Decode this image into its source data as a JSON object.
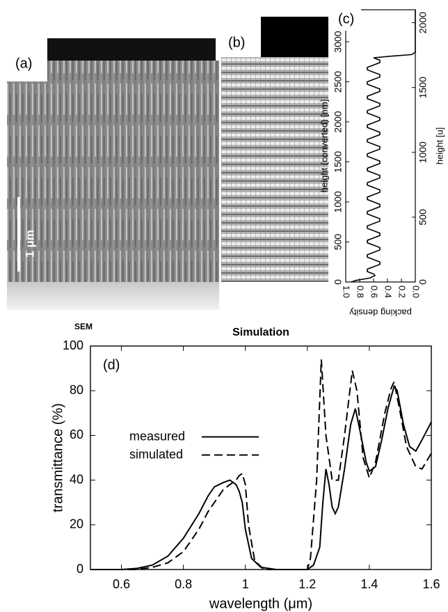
{
  "figure": {
    "panel_a": "(a)",
    "panel_b": "(b)",
    "scale_bar": "1 μm",
    "sem_label": "SEM",
    "simulation_label": "Simulation"
  },
  "chart_data": [
    {
      "type": "line",
      "panel_label": "(c)",
      "xlabel": "packing density",
      "ylabel": "height (converted) [nm]",
      "y2label": "height [u]",
      "xlim": [
        1,
        0
      ],
      "xticks": [
        {
          "value": 1,
          "label": "1.0"
        },
        0.8,
        0.6,
        0.4,
        0.2,
        {
          "value": 0,
          "label": "0.0"
        }
      ],
      "ylim": [
        0,
        3400
      ],
      "yticks": [
        0,
        500,
        1000,
        1500,
        2000,
        2500,
        3000
      ],
      "y2lim": [
        0,
        2100
      ],
      "y2ticks": [
        0,
        500,
        1000,
        1500,
        2000
      ],
      "series": [
        {
          "color": "#000000",
          "y": [
            0,
            20,
            50,
            80,
            100,
            130,
            160,
            190,
            220,
            250,
            280,
            310,
            340,
            370,
            400,
            430,
            460,
            490,
            520,
            550,
            580,
            610,
            640,
            670,
            700,
            730,
            760,
            790,
            820,
            850,
            880,
            910,
            940,
            970,
            1000,
            1030,
            1060,
            1090,
            1120,
            1150,
            1180,
            1210,
            1240,
            1270,
            1300,
            1330,
            1360,
            1390,
            1420,
            1450,
            1480,
            1510,
            1540,
            1570,
            1600,
            1630,
            1660,
            1690,
            1720,
            1750,
            1780,
            1810,
            1840,
            1870,
            1900,
            1930,
            1960,
            1990,
            2020,
            2050,
            2080,
            2110,
            2140,
            2170,
            2200,
            2230,
            2260,
            2290,
            2320,
            2350,
            2380,
            2410,
            2440,
            2470,
            2500,
            2530,
            2560,
            2590,
            2620,
            2650,
            2680,
            2710,
            2740,
            2770,
            2800,
            2820,
            2840,
            2870,
            3400
          ],
          "values": [
            0.92,
            0.85,
            0.65,
            0.58,
            0.6,
            0.69,
            0.69,
            0.6,
            0.51,
            0.51,
            0.6,
            0.69,
            0.69,
            0.6,
            0.51,
            0.51,
            0.6,
            0.69,
            0.69,
            0.6,
            0.51,
            0.51,
            0.6,
            0.69,
            0.69,
            0.6,
            0.51,
            0.51,
            0.6,
            0.69,
            0.69,
            0.6,
            0.51,
            0.51,
            0.6,
            0.69,
            0.69,
            0.6,
            0.51,
            0.51,
            0.6,
            0.69,
            0.69,
            0.6,
            0.51,
            0.51,
            0.6,
            0.69,
            0.69,
            0.6,
            0.51,
            0.51,
            0.6,
            0.69,
            0.69,
            0.6,
            0.51,
            0.51,
            0.6,
            0.69,
            0.69,
            0.6,
            0.51,
            0.51,
            0.6,
            0.69,
            0.69,
            0.6,
            0.51,
            0.51,
            0.6,
            0.69,
            0.69,
            0.6,
            0.51,
            0.51,
            0.6,
            0.69,
            0.69,
            0.6,
            0.51,
            0.51,
            0.6,
            0.69,
            0.69,
            0.6,
            0.51,
            0.51,
            0.6,
            0.69,
            0.69,
            0.6,
            0.51,
            0.51,
            0.6,
            0.35,
            0.05,
            0,
            0
          ]
        }
      ]
    },
    {
      "type": "line",
      "panel_label": "(d)",
      "xlabel": "wavelength (μm)",
      "ylabel": "transmittance (%)",
      "xlim": [
        0.5,
        1.6
      ],
      "xticks": [
        0.6,
        0.8,
        1,
        1.2,
        1.4,
        1.6
      ],
      "ylim": [
        0,
        100
      ],
      "yticks": [
        0,
        20,
        40,
        60,
        80,
        100
      ],
      "legend": "center-left",
      "series": [
        {
          "name": "measured",
          "color": "#000000",
          "dash": "solid",
          "x": [
            0.5,
            0.6,
            0.65,
            0.7,
            0.75,
            0.8,
            0.85,
            0.88,
            0.9,
            0.93,
            0.95,
            0.97,
            0.98,
            0.99,
            1.0,
            1.02,
            1.05,
            1.1,
            1.2,
            1.22,
            1.24,
            1.25,
            1.26,
            1.27,
            1.28,
            1.29,
            1.3,
            1.32,
            1.34,
            1.355,
            1.37,
            1.39,
            1.4,
            1.42,
            1.44,
            1.46,
            1.48,
            1.49,
            1.51,
            1.53,
            1.55,
            1.57,
            1.6
          ],
          "values": [
            0,
            0,
            0.5,
            2,
            6,
            14,
            25,
            33,
            37,
            39,
            40,
            38,
            35,
            30,
            18,
            5,
            1,
            0,
            0,
            2,
            10,
            30,
            45,
            38,
            28,
            25,
            28,
            45,
            65,
            72,
            62,
            48,
            44,
            46,
            58,
            72,
            82,
            80,
            65,
            55,
            53,
            58,
            66
          ]
        },
        {
          "name": "simulated",
          "color": "#000000",
          "dash": "dashed",
          "x": [
            0.5,
            0.65,
            0.7,
            0.75,
            0.8,
            0.85,
            0.88,
            0.9,
            0.93,
            0.95,
            0.97,
            0.98,
            0.99,
            1.0,
            1.01,
            1.03,
            1.06,
            1.2,
            1.21,
            1.23,
            1.245,
            1.26,
            1.28,
            1.3,
            1.32,
            1.345,
            1.36,
            1.38,
            1.4,
            1.42,
            1.45,
            1.47,
            1.48,
            1.5,
            1.52,
            1.55,
            1.57,
            1.6
          ],
          "values": [
            0,
            0,
            1,
            3,
            8,
            18,
            26,
            30,
            36,
            38,
            40,
            42,
            43,
            38,
            20,
            4,
            0,
            0,
            5,
            40,
            94,
            60,
            40,
            40,
            60,
            89,
            80,
            50,
            41,
            48,
            70,
            81,
            84,
            70,
            55,
            46,
            45,
            52
          ]
        }
      ]
    }
  ]
}
